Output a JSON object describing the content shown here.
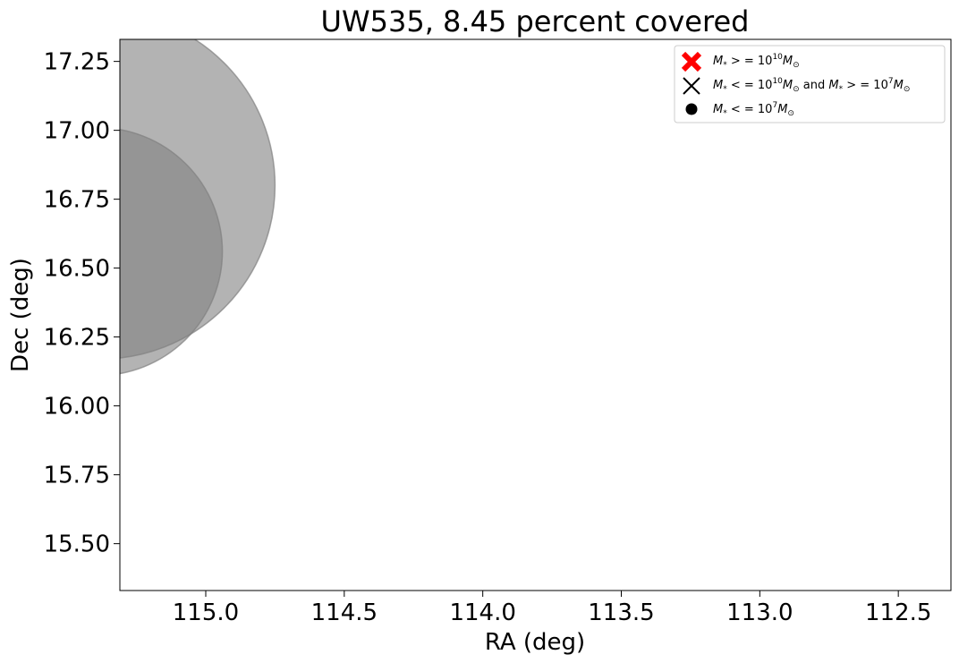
{
  "chart_data": {
    "type": "scatter",
    "title": "UW535, 8.45 percent covered",
    "xlabel": "RA (deg)",
    "ylabel": "Dec (deg)",
    "xlim": [
      115.31,
      112.31
    ],
    "ylim": [
      15.33,
      17.33
    ],
    "x_inverted": true,
    "xticks": [
      115.0,
      114.5,
      114.0,
      113.5,
      113.0,
      112.5
    ],
    "xtick_labels": [
      "115.0",
      "114.5",
      "114.0",
      "113.5",
      "113.0",
      "112.5"
    ],
    "yticks": [
      15.5,
      15.75,
      16.0,
      16.25,
      16.5,
      16.75,
      17.0,
      17.25
    ],
    "ytick_labels": [
      "15.50",
      "15.75",
      "16.00",
      "16.25",
      "16.50",
      "16.75",
      "17.00",
      "17.25"
    ],
    "grid": false,
    "legend_position": "top-right",
    "regions": [
      {
        "shape": "circle",
        "center_ra": 115.38,
        "center_dec": 16.8,
        "radius": 0.63,
        "color": "#808080",
        "alpha": 0.6
      },
      {
        "shape": "circle",
        "center_ra": 115.39,
        "center_dec": 16.56,
        "radius": 0.45,
        "color": "#808080",
        "alpha": 0.6
      }
    ],
    "series": [
      {
        "name": "$M_* >= 10^{10} M_\\odot$",
        "marker": "X",
        "color": "#ff0000",
        "points": []
      },
      {
        "name": "$M_* <= 10^{10} M_\\odot$ and $M_* >= 10^7 M_\\odot$",
        "marker": "x",
        "color": "#000000",
        "points": []
      },
      {
        "name": "$M_* <= 10^7 M_\\odot$",
        "marker": "o",
        "color": "#000000",
        "points": []
      }
    ]
  }
}
